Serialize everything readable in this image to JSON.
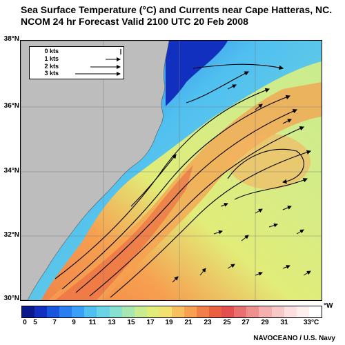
{
  "header": {
    "title_line1": "Sea Surface Temperature (°C) and Currents near Cape Hatteras, NC.",
    "title_line2": "NCOM 24 hr Forecast Valid 2100 UTC 20 Feb 2008"
  },
  "map": {
    "latitude_labels": [
      "38°N",
      "36°N",
      "34°N",
      "32°N",
      "30°N"
    ],
    "legend": {
      "speeds": [
        "0 kts",
        "1 kts",
        "2 kts",
        "3 kts"
      ]
    },
    "land_color": "#bdbdbd"
  },
  "colorbar": {
    "tick_labels": [
      "0",
      "5",
      "7",
      "9",
      "11",
      "13",
      "15",
      "17",
      "19",
      "21",
      "23",
      "25",
      "27",
      "29",
      "31",
      "33°C"
    ],
    "unit_label": "°W",
    "colors": [
      "#0a1a8c",
      "#1230c0",
      "#1a55e0",
      "#2a7ef0",
      "#3aa0f5",
      "#50c0f0",
      "#6ad4e6",
      "#88e0d0",
      "#a8e8b0",
      "#c8ec90",
      "#e2ec78",
      "#f2e070",
      "#f6c060",
      "#f6a050",
      "#f08048",
      "#ea6040",
      "#e45050",
      "#e87070",
      "#ee9090",
      "#f4b0b0",
      "#f8c8c8",
      "#fce0e0",
      "#fff0f0",
      "#ffffff"
    ]
  },
  "footer": {
    "credit": "NAVOCEANO / U.S. Navy"
  }
}
